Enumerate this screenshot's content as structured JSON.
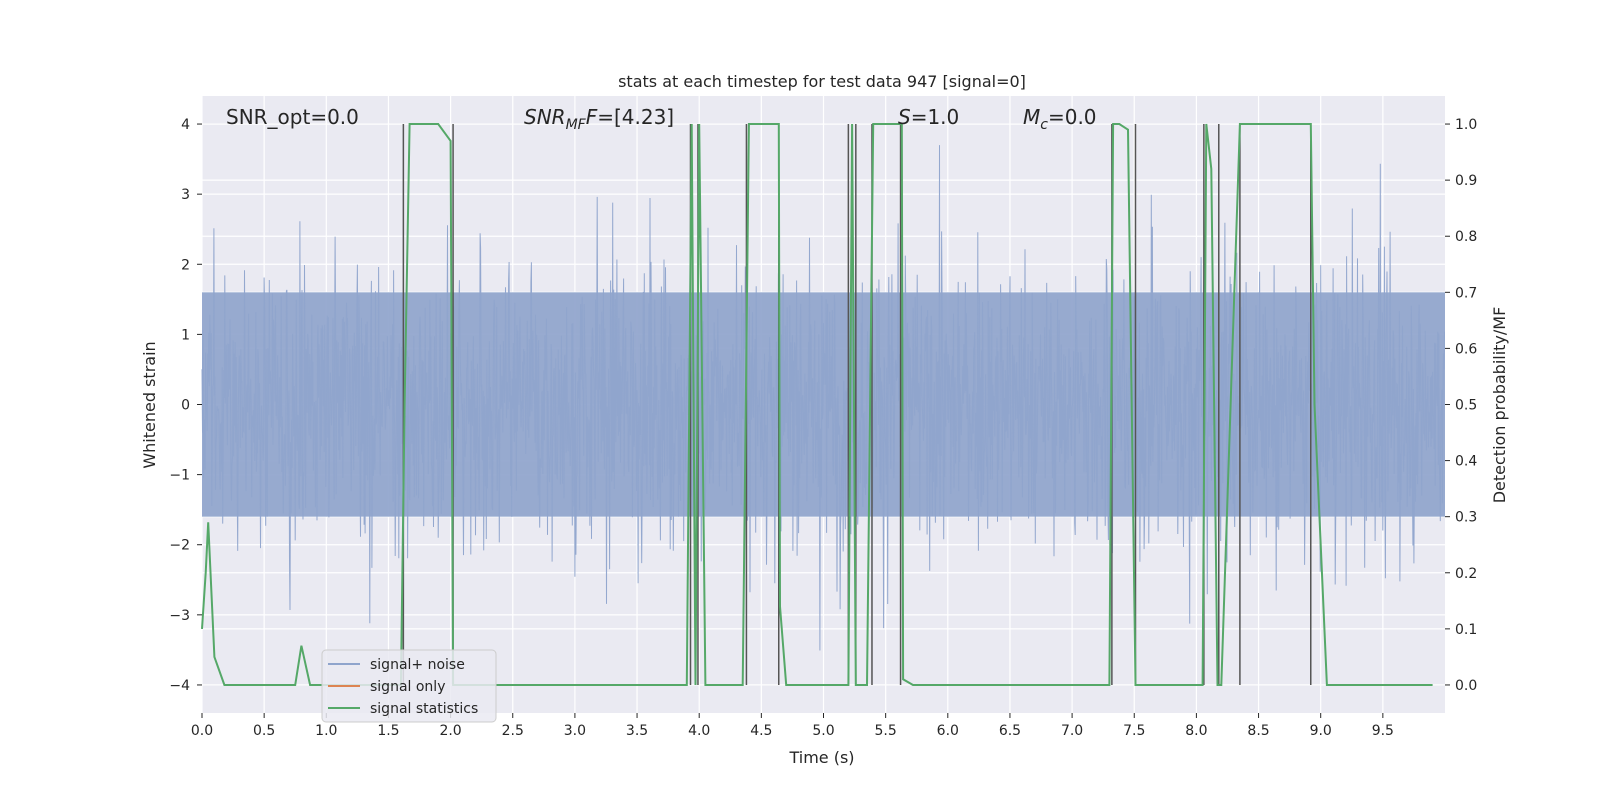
{
  "chart_data": {
    "type": "line",
    "title": "stats at each timestep for test data 947 [signal=0]",
    "xlabel": "Time (s)",
    "ylabel": "Whitened strain",
    "ylabel_right": "Detection probability/MF",
    "xlim": [
      0.0,
      10.0
    ],
    "ylim": [
      -4.4,
      4.4
    ],
    "ylim_right": [
      -0.05,
      1.05
    ],
    "x_ticks": [
      "0.0",
      "0.5",
      "1.0",
      "1.5",
      "2.0",
      "2.5",
      "3.0",
      "3.5",
      "4.0",
      "4.5",
      "5.0",
      "5.5",
      "6.0",
      "6.5",
      "7.0",
      "7.5",
      "8.0",
      "8.5",
      "9.0",
      "9.5"
    ],
    "x_tick_values": [
      0.0,
      0.5,
      1.0,
      1.5,
      2.0,
      2.5,
      3.0,
      3.5,
      4.0,
      4.5,
      5.0,
      5.5,
      6.0,
      6.5,
      7.0,
      7.5,
      8.0,
      8.5,
      9.0,
      9.5
    ],
    "y_ticks": [
      "−4",
      "−3",
      "−2",
      "−1",
      "0",
      "1",
      "2",
      "3",
      "4"
    ],
    "y_tick_values": [
      -4,
      -3,
      -2,
      -1,
      0,
      1,
      2,
      3,
      4
    ],
    "y_right_ticks": [
      "0.0",
      "0.1",
      "0.2",
      "0.3",
      "0.4",
      "0.5",
      "0.6",
      "0.7",
      "0.8",
      "0.9",
      "1.0"
    ],
    "y_right_tick_values": [
      0.0,
      0.1,
      0.2,
      0.3,
      0.4,
      0.5,
      0.6,
      0.7,
      0.8,
      0.9,
      1.0
    ],
    "grid": true,
    "annotations": {
      "snr_opt": "SNR_opt=0.0",
      "snr_mf_main": "SNR",
      "snr_mf_sub": "MF",
      "snr_mf_tail": "=[4.23]",
      "s_main": "S",
      "s_tail": "=1.0",
      "mc_main": "M",
      "mc_sub": "c",
      "mc_tail": "=0.0"
    },
    "legend": {
      "placement": "lower-left",
      "entries": [
        "signal+ noise",
        "signal only",
        "signal statistics"
      ]
    },
    "colors": {
      "noise": "#8fa4cc",
      "signal_only": "#dd8452",
      "statistics": "#55a868",
      "vlines": "#555555",
      "axes_bg": "#eaeaf2",
      "grid": "#ffffff"
    },
    "noise_envelope": {
      "description_free": true,
      "dense_band": [
        -1.6,
        1.6
      ],
      "peak_range": [
        -3.9,
        3.7
      ]
    },
    "series": [
      {
        "name": "signal statistics",
        "x": [
          0.0,
          0.03,
          0.05,
          0.1,
          0.18,
          0.75,
          0.8,
          0.87,
          1.6,
          1.63,
          1.67,
          1.9,
          2.0,
          2.02,
          3.9,
          3.94,
          3.97,
          4.0,
          4.05,
          4.35,
          4.4,
          4.45,
          4.64,
          4.65,
          4.7,
          4.75,
          5.2,
          5.23,
          5.26,
          5.3,
          5.35,
          5.4,
          5.42,
          5.48,
          5.63,
          5.64,
          5.72,
          7.3,
          7.33,
          7.38,
          7.45,
          7.51,
          7.53,
          8.05,
          8.08,
          8.12,
          8.17,
          8.2,
          8.35,
          8.42,
          8.47,
          8.92,
          8.95,
          9.05,
          9.9
        ],
        "y": [
          0.1,
          0.2,
          0.29,
          0.05,
          0.0,
          0.0,
          0.07,
          0.0,
          0.0,
          0.5,
          1.0,
          1.0,
          0.97,
          0.0,
          0.0,
          1.0,
          0.0,
          1.0,
          0.0,
          0.0,
          1.0,
          1.0,
          1.0,
          0.14,
          0.0,
          0.0,
          0.0,
          1.0,
          0.0,
          0.0,
          0.0,
          1.0,
          1.0,
          1.0,
          1.0,
          0.01,
          0.0,
          0.0,
          1.0,
          1.0,
          0.99,
          0.0,
          0.0,
          0.0,
          1.0,
          0.92,
          0.0,
          0.0,
          1.0,
          1.0,
          1.0,
          1.0,
          0.5,
          0.0,
          0.0
        ]
      }
    ],
    "vlines": [
      1.62,
      2.02,
      3.93,
      3.99,
      4.38,
      4.64,
      5.2,
      5.26,
      5.39,
      5.62,
      7.32,
      7.51,
      8.06,
      8.18,
      8.35,
      8.92
    ]
  }
}
